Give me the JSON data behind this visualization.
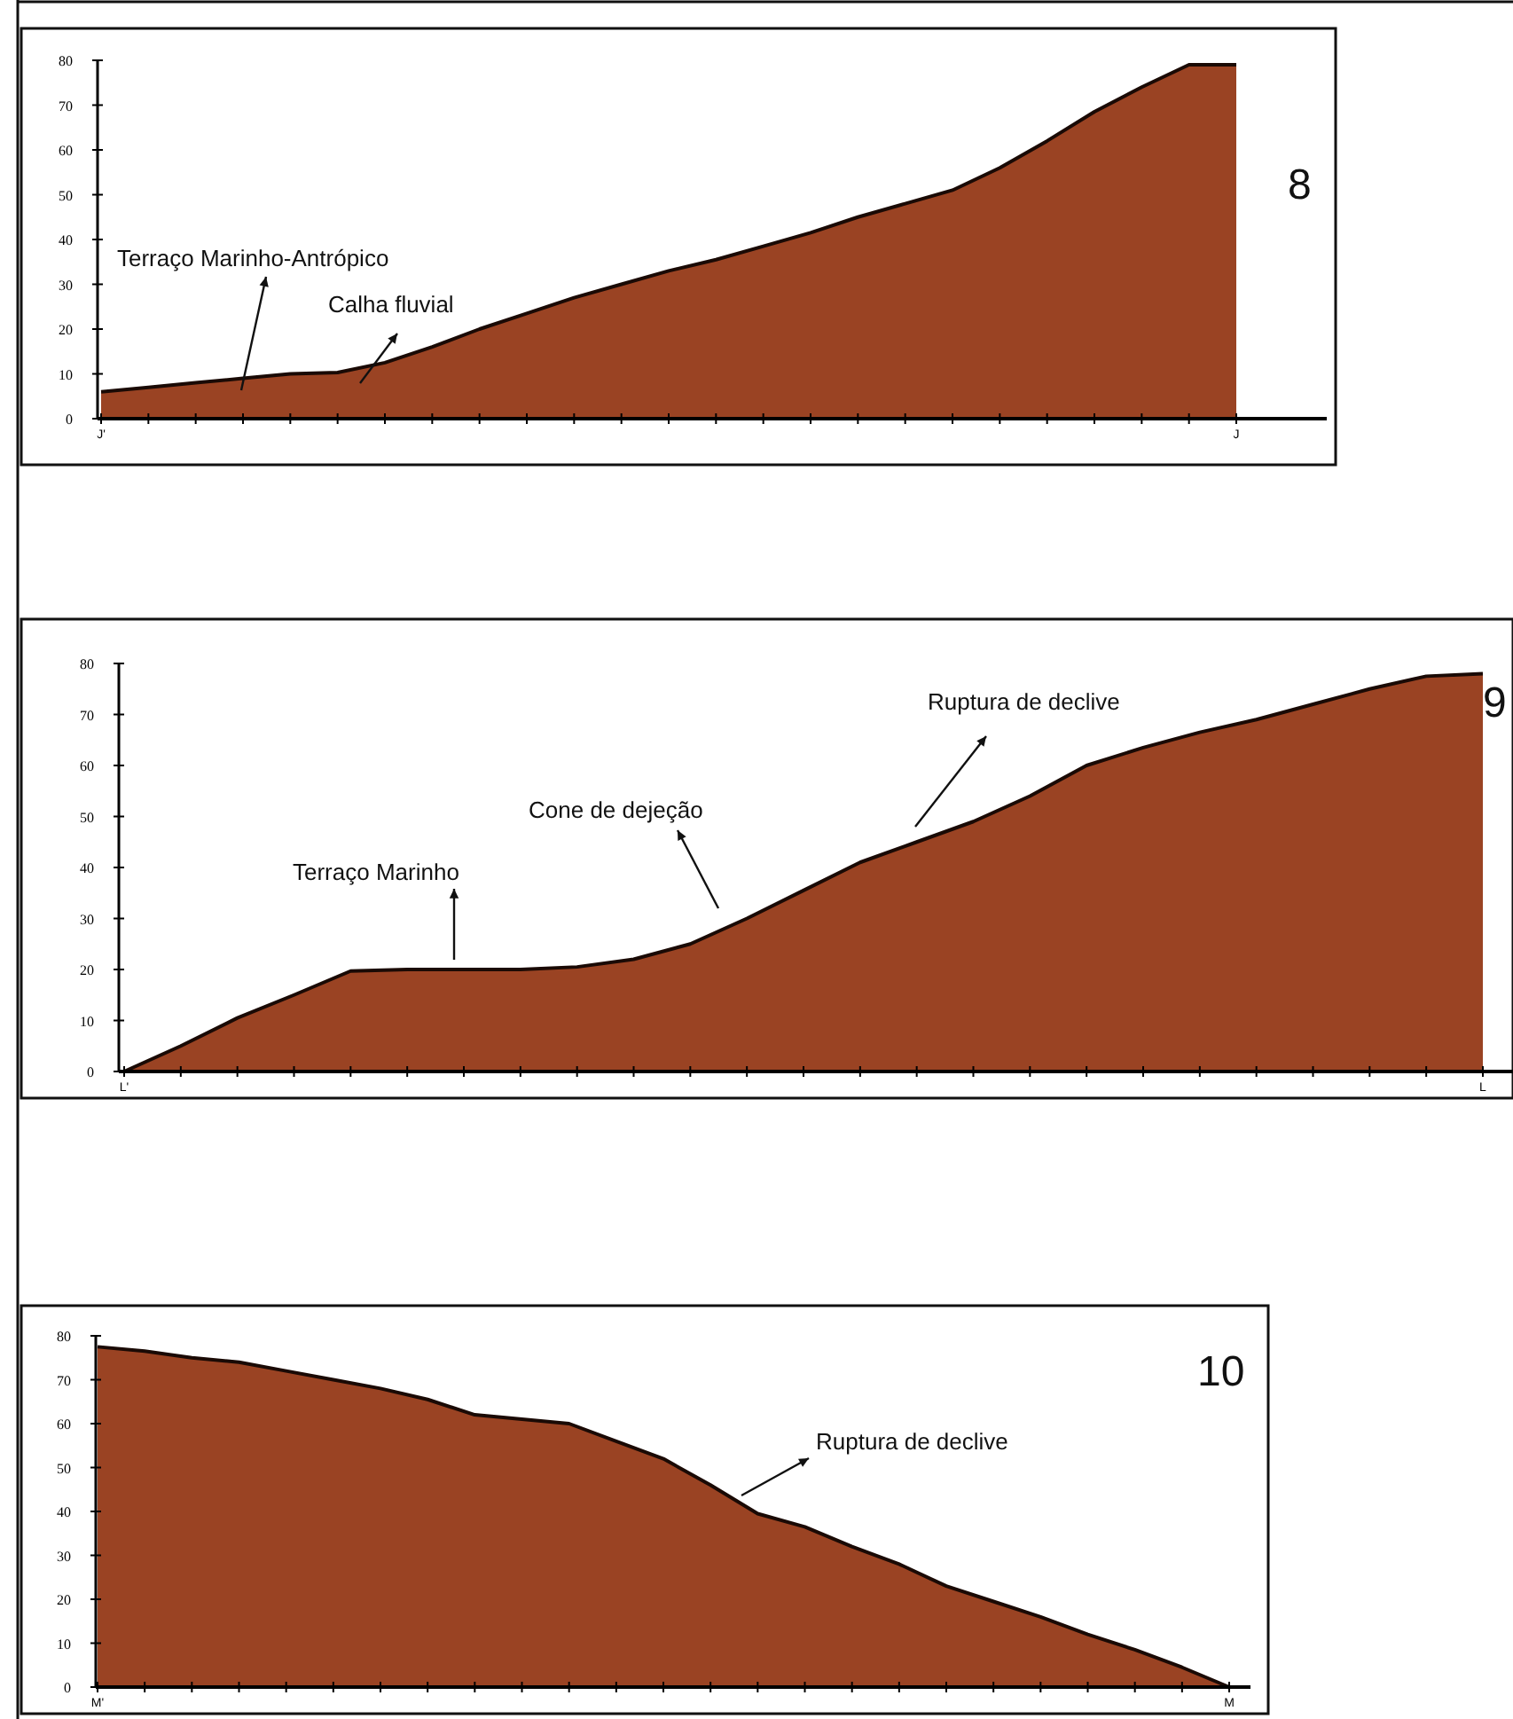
{
  "chart_data": [
    {
      "type": "area",
      "categories": [
        "J'",
        null,
        null,
        null,
        null,
        null,
        null,
        null,
        null,
        null,
        null,
        null,
        null,
        null,
        null,
        null,
        null,
        null,
        null,
        null,
        null,
        null,
        null,
        null,
        "J"
      ],
      "series": [
        {
          "color": "#9a4323",
          "values": [
            6,
            7,
            8,
            9,
            10,
            10.3,
            12.5,
            16,
            20,
            23.5,
            27,
            30,
            33,
            35.5,
            38.5,
            41.5,
            45,
            48,
            51,
            56,
            62,
            68.5,
            74,
            79,
            79
          ]
        }
      ],
      "ylim": [
        0,
        80
      ],
      "yticks": [
        0,
        10,
        20,
        30,
        40,
        50,
        60,
        70,
        80
      ],
      "annotations": [
        "Terraço Marinho-Antrópico",
        "Calha fluvial",
        "8"
      ]
    },
    {
      "type": "area",
      "categories": [
        "L'",
        null,
        null,
        null,
        null,
        null,
        null,
        null,
        null,
        null,
        null,
        null,
        null,
        null,
        null,
        null,
        null,
        null,
        null,
        null,
        null,
        null,
        null,
        null,
        "L"
      ],
      "series": [
        {
          "color": "#9a4323",
          "values": [
            0,
            5,
            10.5,
            15,
            19.7,
            20,
            20,
            20,
            20.5,
            22,
            25,
            30,
            35.5,
            41,
            45,
            49,
            54,
            60,
            63.5,
            66.5,
            69,
            72,
            75,
            77.5,
            78
          ]
        }
      ],
      "ylim": [
        0,
        80
      ],
      "yticks": [
        0,
        10,
        20,
        30,
        40,
        50,
        60,
        70,
        80
      ],
      "annotations": [
        "Terraço Marinho",
        "Cone de dejeção",
        "Ruptura de declive",
        "9"
      ]
    },
    {
      "type": "area",
      "categories": [
        "M'",
        null,
        null,
        null,
        null,
        null,
        null,
        null,
        null,
        null,
        null,
        null,
        null,
        null,
        null,
        null,
        null,
        null,
        null,
        null,
        null,
        null,
        null,
        null,
        "M"
      ],
      "series": [
        {
          "color": "#9a4323",
          "values": [
            77.5,
            76.5,
            75,
            74,
            72,
            70,
            68,
            65.5,
            62,
            61,
            60,
            56,
            52,
            46,
            39.5,
            36.5,
            32,
            28,
            23,
            19.5,
            16,
            12,
            8.5,
            4.5,
            0
          ]
        }
      ],
      "ylim": [
        0,
        80
      ],
      "yticks": [
        0,
        10,
        20,
        30,
        40,
        50,
        60,
        70,
        80
      ],
      "annotations": [
        "Ruptura de declive",
        "10"
      ]
    }
  ]
}
